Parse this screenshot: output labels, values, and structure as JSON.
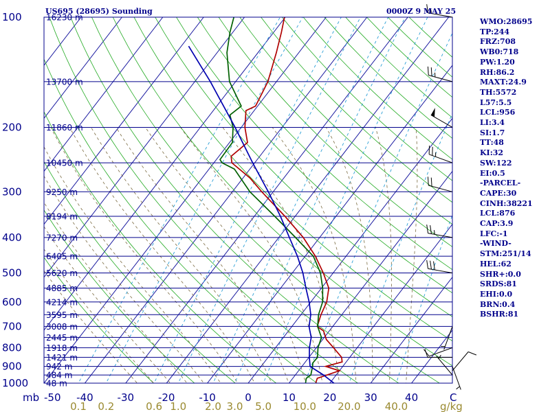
{
  "header": {
    "station": "US695 (28695) Sounding",
    "time": "0000Z  9 MAY 25"
  },
  "indices": [
    "WMO:28695",
    "TP:244",
    "FRZ:708",
    "WB0:718",
    "PW:1.20",
    "RH:86.2",
    "MAXT:24.9",
    "TH:5572",
    "L57:5.5",
    "LCL:956",
    "LI:3.4",
    "SI:1.7",
    "TT:48",
    "KI:32",
    "SW:122",
    "EI:0.5",
    "-PARCEL-",
    "CAPE:30",
    "CINH:38221",
    "LCL:876",
    "CAP:3.9",
    "LFC:-1",
    "-WIND-",
    "STM:251/14",
    "HEL:62",
    "SHR+:0.0",
    "SRDS:81",
    "EHI:0.0",
    "BRN:0.4",
    "BSHR:81"
  ],
  "chart_data": {
    "type": "line",
    "chart_kind": "skew-T log-P sounding",
    "x_unit_label": "C",
    "y_unit_label": "mb",
    "mixing_ratio_unit_label": "g/kg",
    "xlim": [
      -50,
      50
    ],
    "ylim": [
      1000,
      100
    ],
    "y_scale": "log",
    "pressure_levels": [
      100,
      200,
      300,
      400,
      500,
      600,
      700,
      800,
      900,
      1000
    ],
    "height_levels": [
      {
        "p": 100,
        "h": "16230 m"
      },
      {
        "p": 150,
        "h": "13700 m"
      },
      {
        "p": 200,
        "h": "11860 m"
      },
      {
        "p": 250,
        "h": "10450 m"
      },
      {
        "p": 300,
        "h": "9250 m"
      },
      {
        "p": 350,
        "h": "8194 m"
      },
      {
        "p": 400,
        "h": "7270 m"
      },
      {
        "p": 450,
        "h": "6405 m"
      },
      {
        "p": 500,
        "h": "5620 m"
      },
      {
        "p": 550,
        "h": "4885 m"
      },
      {
        "p": 600,
        "h": "4214 m"
      },
      {
        "p": 650,
        "h": "3595 m"
      },
      {
        "p": 700,
        "h": "3008 m"
      },
      {
        "p": 750,
        "h": "2445 m"
      },
      {
        "p": 800,
        "h": "1918 m"
      },
      {
        "p": 850,
        "h": "1421 m"
      },
      {
        "p": 900,
        "h": "942 m"
      },
      {
        "p": 950,
        "h": "484 m"
      },
      {
        "p": 1000,
        "h": "48 m"
      }
    ],
    "temperature_ticks": [
      -50,
      -40,
      -30,
      -20,
      -10,
      0,
      10,
      20,
      30,
      40
    ],
    "mixing_ratio_ticks": [
      "0.1",
      "0.2",
      "0.6",
      "1.0",
      "2.0",
      "3.0",
      "5.0",
      "10.0",
      "20.0",
      "40.0"
    ],
    "series": [
      {
        "color": "#b00000",
        "points": [
          [
            998,
            16.5
          ],
          [
            970,
            16.0
          ],
          [
            925,
            20.0
          ],
          [
            900,
            15.8
          ],
          [
            875,
            19.0
          ],
          [
            850,
            18.0
          ],
          [
            800,
            14.2
          ],
          [
            760,
            10.9
          ],
          [
            720,
            8.6
          ],
          [
            700,
            6.2
          ],
          [
            650,
            4.9
          ],
          [
            600,
            3.9
          ],
          [
            550,
            1.8
          ],
          [
            500,
            -2.4
          ],
          [
            450,
            -7.5
          ],
          [
            400,
            -14.0
          ],
          [
            350,
            -22.5
          ],
          [
            300,
            -32.8
          ],
          [
            275,
            -38.3
          ],
          [
            250,
            -45.6
          ],
          [
            240,
            -47.0
          ],
          [
            220,
            -45.6
          ],
          [
            200,
            -49.1
          ],
          [
            180,
            -52.0
          ],
          [
            175,
            -50.5
          ],
          [
            150,
            -52.1
          ],
          [
            125,
            -55.5
          ],
          [
            110,
            -58.1
          ],
          [
            100,
            -60.2
          ]
        ]
      },
      {
        "color": "#006000",
        "points": [
          [
            998,
            14.0
          ],
          [
            970,
            13.3
          ],
          [
            950,
            13.8
          ],
          [
            900,
            12.6
          ],
          [
            880,
            12.0
          ],
          [
            850,
            12.1
          ],
          [
            800,
            10.4
          ],
          [
            750,
            9.3
          ],
          [
            700,
            6.3
          ],
          [
            650,
            4.3
          ],
          [
            600,
            2.9
          ],
          [
            550,
            0.3
          ],
          [
            500,
            -3.1
          ],
          [
            450,
            -8.0
          ],
          [
            400,
            -15.9
          ],
          [
            350,
            -25.0
          ],
          [
            300,
            -35.7
          ],
          [
            260,
            -43.8
          ],
          [
            250,
            -48.0
          ],
          [
            245,
            -49.1
          ],
          [
            220,
            -49.3
          ],
          [
            200,
            -52.0
          ],
          [
            185,
            -55.1
          ],
          [
            175,
            -54.0
          ],
          [
            150,
            -61.5
          ],
          [
            125,
            -67.6
          ],
          [
            110,
            -70.7
          ],
          [
            100,
            -72.6
          ]
        ]
      },
      {
        "color": "#0000b0",
        "points": [
          [
            1000,
            21.0
          ],
          [
            950,
            16.9
          ],
          [
            900,
            12.0
          ],
          [
            850,
            10.1
          ],
          [
            800,
            8.3
          ],
          [
            750,
            6.8
          ],
          [
            700,
            4.2
          ],
          [
            650,
            2.4
          ],
          [
            600,
            -0.4
          ],
          [
            550,
            -3.8
          ],
          [
            500,
            -7.4
          ],
          [
            450,
            -11.9
          ],
          [
            400,
            -17.4
          ],
          [
            350,
            -23.6
          ],
          [
            300,
            -31.2
          ],
          [
            250,
            -40.5
          ],
          [
            200,
            -51.5
          ],
          [
            150,
            -66.2
          ],
          [
            130,
            -73.9
          ],
          [
            120,
            -78.2
          ]
        ]
      }
    ],
    "winds": [
      {
        "p": 100,
        "dir": 280,
        "spd": 15
      },
      {
        "p": 150,
        "dir": 285,
        "spd": 25
      },
      {
        "p": 200,
        "dir": 300,
        "spd": 50
      },
      {
        "p": 250,
        "dir": 290,
        "spd": 25
      },
      {
        "p": 300,
        "dir": 285,
        "spd": 20
      },
      {
        "p": 400,
        "dir": 280,
        "spd": 25
      },
      {
        "p": 500,
        "dir": 280,
        "spd": 30
      },
      {
        "p": 700,
        "dir": 200,
        "spd": 5
      },
      {
        "p": 800,
        "dir": 250,
        "spd": 10
      },
      {
        "p": 850,
        "dir": 270,
        "spd": 10
      },
      {
        "p": 900,
        "dir": 160,
        "spd": 5
      },
      {
        "p": 925,
        "dir": 40,
        "spd": 10
      },
      {
        "p": 950,
        "dir": 320,
        "spd": 5
      }
    ]
  }
}
